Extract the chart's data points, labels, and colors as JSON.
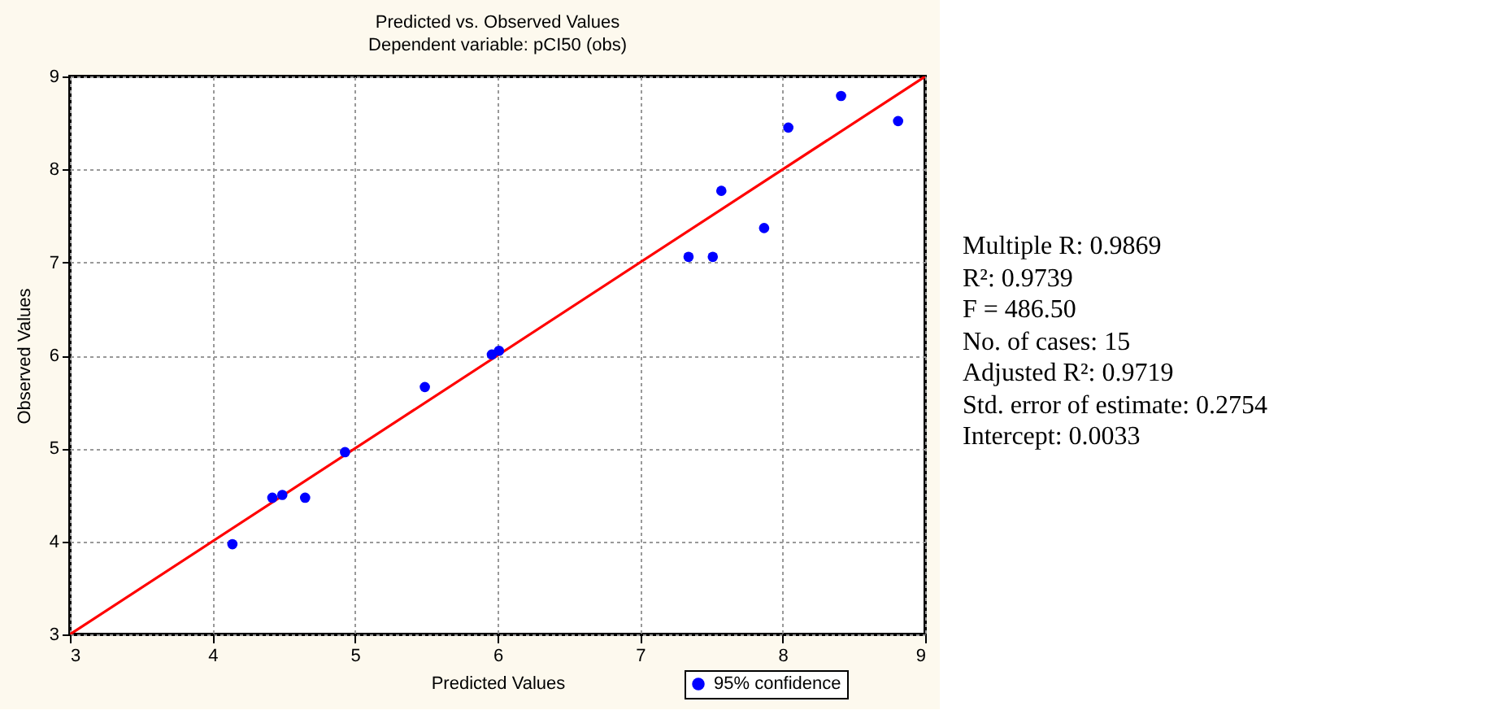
{
  "chart_data": {
    "type": "scatter",
    "title": "Predicted vs. Observed Values",
    "subtitle": "Dependent variable: pCI50 (obs)",
    "xlabel": "Predicted Values",
    "ylabel": "Observed Values",
    "xlim": [
      3,
      9
    ],
    "xticks": [
      3,
      4,
      5,
      6,
      7,
      8,
      9
    ],
    "ylim": [
      3,
      9
    ],
    "yticks": [
      3,
      4,
      5,
      6,
      7,
      8,
      9
    ],
    "grid": true,
    "legend": "bottom right",
    "series": [
      {
        "type": "line",
        "color": "#ff0000",
        "x": [
          3,
          9
        ],
        "values": [
          3,
          9
        ]
      },
      {
        "name": "95% confidence",
        "color": "#0000ff",
        "marker": "circle",
        "x": [
          4.14,
          4.42,
          4.49,
          4.65,
          4.93,
          5.49,
          5.96,
          6.01,
          7.34,
          7.51,
          7.57,
          7.87,
          8.04,
          8.41,
          8.81
        ],
        "values": [
          3.97,
          4.47,
          4.5,
          4.47,
          4.96,
          5.66,
          6.01,
          6.05,
          7.06,
          7.06,
          7.77,
          7.37,
          8.45,
          8.79,
          8.52
        ]
      }
    ],
    "annotations": [
      "Multiple R: 0.9869",
      "R²:  0.9739",
      "F = 486.50",
      "No. of cases: 15",
      "Adjusted R²:  0.9719",
      "Std. error of estimate: 0.2754",
      "Intercept:  0.0033"
    ]
  }
}
